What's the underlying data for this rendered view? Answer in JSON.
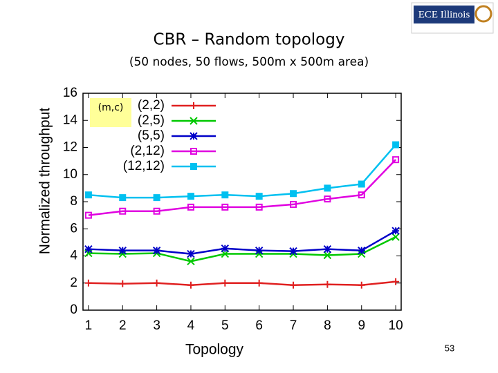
{
  "logo": "ECE Illinois",
  "page_number": "53",
  "chart_data": {
    "type": "line",
    "title": "CBR – Random topology",
    "subtitle": "(50 nodes, 50 flows, 500m x 500m area)",
    "x_label": "Topology",
    "y_label": "Normalized throughput",
    "legend_title": "(m,c)",
    "legend": "upper left",
    "x": [
      1,
      2,
      3,
      4,
      5,
      6,
      7,
      8,
      9,
      10
    ],
    "xlim": [
      0.84,
      10.16
    ],
    "xticks": [
      1,
      2,
      3,
      4,
      5,
      6,
      7,
      8,
      9,
      10
    ],
    "ylim": [
      0,
      16
    ],
    "yticks": [
      0,
      2,
      4,
      6,
      8,
      10,
      12,
      14,
      16
    ],
    "grid": false,
    "series": [
      {
        "name": "(2,2)",
        "color": "#e02020",
        "marker": "plus",
        "values": [
          2.0,
          1.95,
          2.0,
          1.85,
          2.0,
          2.0,
          1.85,
          1.9,
          1.85,
          2.1
        ]
      },
      {
        "name": "(2,5)",
        "color": "#00c800",
        "marker": "cross",
        "values": [
          4.2,
          4.15,
          4.2,
          3.6,
          4.15,
          4.15,
          4.15,
          4.05,
          4.15,
          5.4
        ]
      },
      {
        "name": "(5,5)",
        "color": "#0000c8",
        "marker": "star",
        "values": [
          4.5,
          4.4,
          4.4,
          4.15,
          4.55,
          4.4,
          4.35,
          4.5,
          4.4,
          5.85
        ]
      },
      {
        "name": "(2,12)",
        "color": "#e000e0",
        "marker": "square",
        "values": [
          7.0,
          7.3,
          7.3,
          7.6,
          7.6,
          7.6,
          7.8,
          8.2,
          8.5,
          11.1
        ]
      },
      {
        "name": "(12,12)",
        "color": "#00c0f0",
        "marker": "filled-square",
        "values": [
          8.5,
          8.3,
          8.3,
          8.4,
          8.5,
          8.4,
          8.6,
          9.0,
          9.3,
          12.2
        ]
      }
    ]
  }
}
